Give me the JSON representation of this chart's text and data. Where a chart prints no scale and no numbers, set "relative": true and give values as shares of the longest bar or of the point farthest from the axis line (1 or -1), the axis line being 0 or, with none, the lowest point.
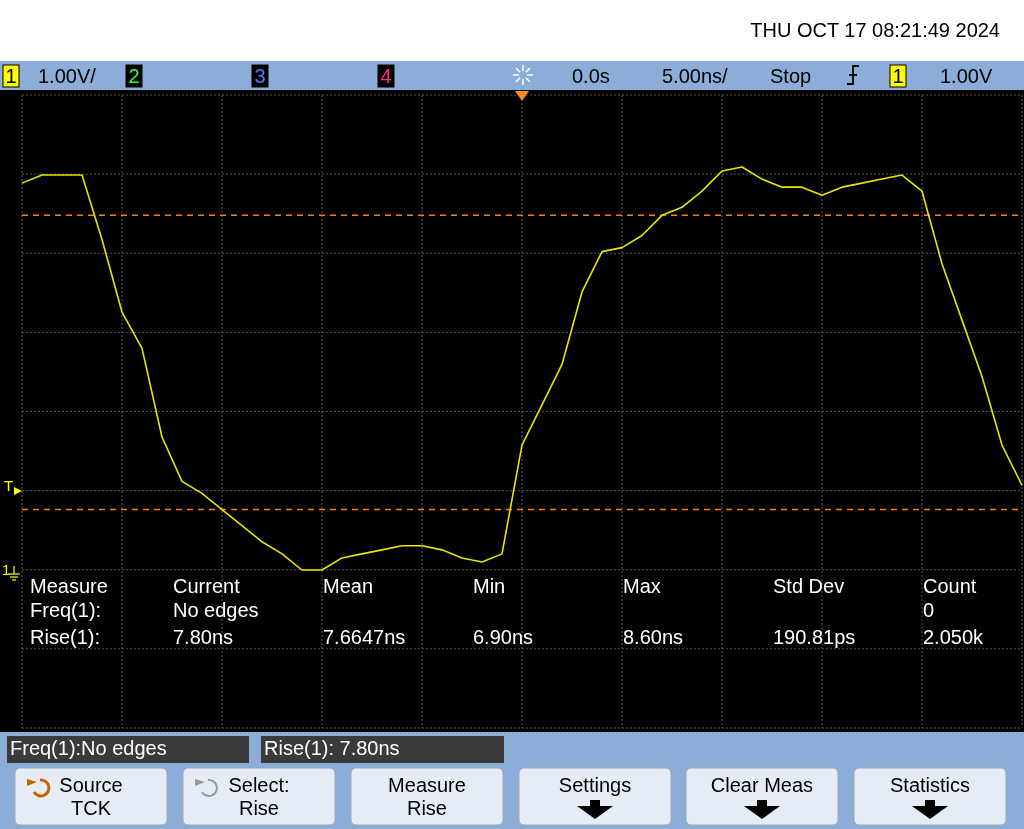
{
  "chart_data": {
    "type": "line",
    "title": "THU OCT 17 08:21:49 2024",
    "relative": true,
    "grid": true,
    "categories": [
      null,
      null,
      null,
      null,
      null,
      null,
      null,
      null,
      null,
      null,
      null,
      null,
      null,
      null,
      null,
      null,
      null,
      null,
      null,
      null,
      null,
      null,
      null,
      null,
      null,
      null,
      null,
      null,
      null,
      null,
      null,
      null,
      null,
      null,
      null,
      null,
      null,
      null,
      null,
      null,
      null,
      null,
      null,
      null,
      null,
      null,
      null,
      null,
      null,
      null,
      null
    ],
    "series": [
      {
        "color": "#e6e600",
        "values": [
          0.96,
          0.98,
          0.98,
          0.98,
          0.82,
          0.64,
          0.55,
          0.33,
          0.22,
          0.19,
          0.15,
          0.11,
          0.07,
          0.04,
          0,
          0,
          0.03,
          0.04,
          0.05,
          0.06,
          0.06,
          0.05,
          0.03,
          0.02,
          0.04,
          0.31,
          0.41,
          0.51,
          0.69,
          0.79,
          0.8,
          0.83,
          0.88,
          0.9,
          0.94,
          0.99,
          1,
          0.97,
          0.95,
          0.95,
          0.93,
          0.95,
          0.96,
          0.97,
          0.98,
          0.94,
          0.76,
          0.62,
          0.48,
          0.31,
          0.21
        ]
      }
    ],
    "ref_lines": [
      {
        "axis": "y",
        "value": 0.88,
        "color": "#ff8000",
        "line_style": "dashed"
      },
      {
        "axis": "y",
        "value": 0.15,
        "color": "#ff8000",
        "line_style": "dashed"
      }
    ],
    "annotations": [
      "1",
      "1.00V/",
      "2",
      "3",
      "4",
      "0.0s",
      "5.00ns/",
      "Stop",
      "1",
      "1.00V",
      "Measure",
      "Current",
      "Mean",
      "Min",
      "Max",
      "Std Dev",
      "Count",
      "Freq(1):",
      "No edges",
      "0",
      "Rise(1):",
      "7.80ns",
      "7.6647ns",
      "6.90ns",
      "8.60ns",
      "190.81ps",
      "2.050k",
      "Freq(1):No edges",
      "Rise(1): 7.80ns",
      "Source",
      "TCK",
      "Select:",
      "Rise",
      "Measure",
      "Rise",
      "Settings",
      "Clear Meas",
      "Statistics",
      "T",
      "1"
    ]
  }
}
